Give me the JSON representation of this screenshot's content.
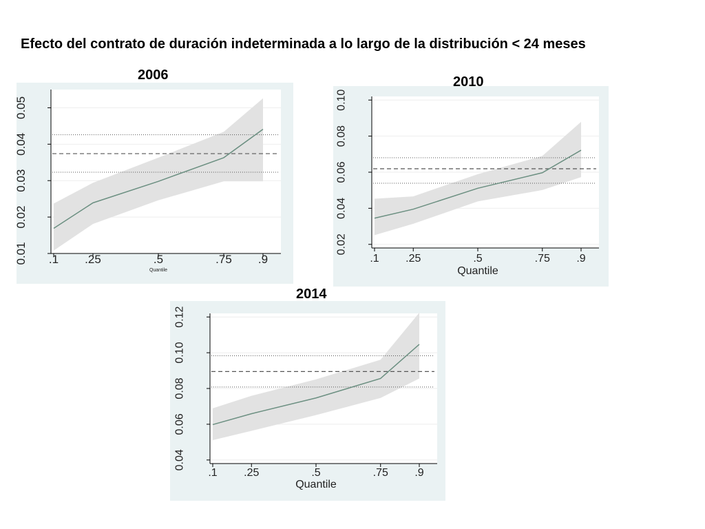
{
  "slide": {
    "title": "Efecto del contrato de duración indeterminada a lo largo de la distribución < 24 meses"
  },
  "colors": {
    "panel_bg": "#eaf2f3",
    "plot_bg": "#ffffff",
    "band": "#e2e2e2",
    "line": "#6b8f81",
    "ols": "#555555"
  },
  "chart_data": [
    {
      "type": "line",
      "title": "2006",
      "xlabel": "Quantile",
      "x": [
        0.1,
        0.25,
        0.5,
        0.75,
        0.9
      ],
      "x_tick_labels": [
        ".1",
        ".25",
        ".5",
        ".75",
        ".9"
      ],
      "y_ticks": [
        0.01,
        0.02,
        0.03,
        0.04,
        0.05
      ],
      "y_tick_labels": [
        "0.01",
        "0.02",
        "0.03",
        "0.04",
        "0.05"
      ],
      "ylim": [
        0.01,
        0.055
      ],
      "series": [
        {
          "values": [
            0.0169,
            0.0239,
            0.0298,
            0.0363,
            0.0441
          ],
          "ci_lower": [
            0.0108,
            0.0181,
            0.0246,
            0.0298,
            0.0298
          ],
          "ci_upper": [
            0.0237,
            0.0294,
            0.0363,
            0.0434,
            0.0526
          ]
        }
      ],
      "ols": {
        "estimate": 0.0374,
        "ci_lower": 0.0323,
        "ci_upper": 0.0426
      }
    },
    {
      "type": "line",
      "title": "2010",
      "xlabel": "Quantile",
      "x": [
        0.1,
        0.25,
        0.5,
        0.75,
        0.9
      ],
      "x_tick_labels": [
        ".1",
        ".25",
        ".5",
        ".75",
        ".9"
      ],
      "y_ticks": [
        0.02,
        0.04,
        0.06,
        0.08,
        0.1
      ],
      "y_tick_labels": [
        "0.02",
        "0.04",
        "0.06",
        "0.08",
        "0.10"
      ],
      "ylim": [
        0.018,
        0.102
      ],
      "series": [
        {
          "values": [
            0.0345,
            0.0395,
            0.0511,
            0.0597,
            0.0722
          ],
          "ci_lower": [
            0.0251,
            0.0314,
            0.0438,
            0.0501,
            0.0573
          ],
          "ci_upper": [
            0.0453,
            0.0466,
            0.0589,
            0.069,
            0.0879
          ]
        }
      ],
      "ols": {
        "estimate": 0.0619,
        "ci_lower": 0.0539,
        "ci_upper": 0.068
      }
    },
    {
      "type": "line",
      "title": "2014",
      "xlabel": "Quantile",
      "x": [
        0.1,
        0.25,
        0.5,
        0.75,
        0.9
      ],
      "x_tick_labels": [
        ".1",
        ".25",
        ".5",
        ".75",
        ".9"
      ],
      "y_ticks": [
        0.04,
        0.06,
        0.08,
        0.1,
        0.12
      ],
      "y_tick_labels": [
        "0.04",
        "0.06",
        "0.08",
        "0.10",
        "0.12"
      ],
      "ylim": [
        0.038,
        0.122
      ],
      "series": [
        {
          "values": [
            0.0598,
            0.0659,
            0.0747,
            0.0856,
            0.1047
          ],
          "ci_lower": [
            0.0511,
            0.0563,
            0.0651,
            0.0747,
            0.0856
          ],
          "ci_upper": [
            0.0689,
            0.0759,
            0.0851,
            0.0961,
            0.1224
          ]
        }
      ],
      "ols": {
        "estimate": 0.0895,
        "ci_lower": 0.0808,
        "ci_upper": 0.0983
      }
    }
  ]
}
